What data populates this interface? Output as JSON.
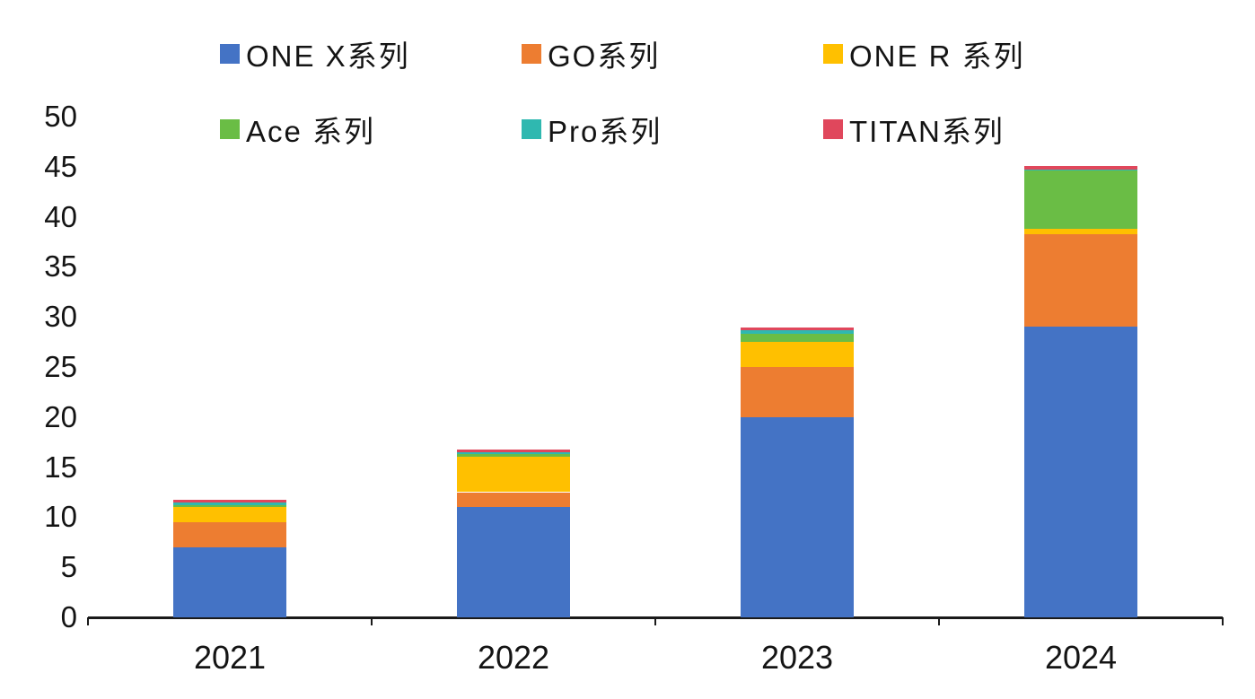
{
  "chart_data": {
    "type": "bar",
    "stacked": true,
    "title": "",
    "xlabel": "",
    "ylabel": "",
    "categories": [
      "2021",
      "2022",
      "2023",
      "2024"
    ],
    "series": [
      {
        "name": "ONE X系列",
        "color": "#4473C5",
        "values": [
          7.0,
          11.0,
          20.0,
          29.0
        ]
      },
      {
        "name": "GO系列",
        "color": "#ED7D31",
        "values": [
          2.5,
          1.5,
          5.0,
          9.3
        ]
      },
      {
        "name": "ONE R 系列",
        "color": "#FFC000",
        "values": [
          1.5,
          3.5,
          2.5,
          0.5
        ]
      },
      {
        "name": "Ace 系列",
        "color": "#6ABD45",
        "values": [
          0.2,
          0.3,
          0.8,
          5.8
        ]
      },
      {
        "name": "Pro系列",
        "color": "#2FB8B0",
        "values": [
          0.3,
          0.2,
          0.4,
          0.15
        ]
      },
      {
        "name": "TITAN系列",
        "color": "#E0475C",
        "values": [
          0.2,
          0.3,
          0.2,
          0.35
        ]
      }
    ],
    "ylim": [
      0,
      50
    ],
    "ytick_step": 5,
    "grid": false,
    "legend_position": "top"
  },
  "y_axis": {
    "tick_labels": [
      "0",
      "5",
      "10",
      "15",
      "20",
      "25",
      "30",
      "35",
      "40",
      "45",
      "50"
    ]
  },
  "x_axis": {
    "labels": [
      "2021",
      "2022",
      "2023",
      "2024"
    ]
  }
}
